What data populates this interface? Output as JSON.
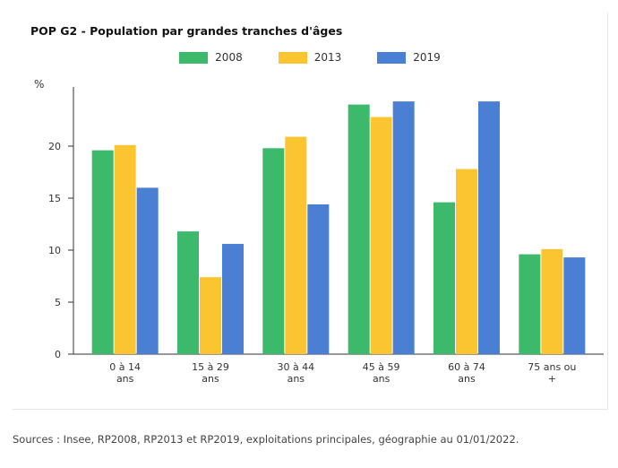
{
  "colors": {
    "s2008": "#3cb96b",
    "s2013": "#fbc532",
    "s2019": "#4a7fd4",
    "axis": "#333333"
  },
  "chart_data": {
    "type": "bar",
    "title": "POP G2 - Population par grandes tranches d'âges",
    "ylabel": "%",
    "ylim": [
      0,
      25
    ],
    "yticks": [
      0,
      5,
      10,
      15,
      20
    ],
    "legend_position": "top-center",
    "grid": false,
    "categories": [
      "0 à 14 ans",
      "15 à 29 ans",
      "30 à 44 ans",
      "45 à 59 ans",
      "60 à 74 ans",
      "75 ans ou +"
    ],
    "series": [
      {
        "name": "2008",
        "values": [
          19.6,
          11.8,
          19.8,
          24.0,
          14.6,
          9.6
        ]
      },
      {
        "name": "2013",
        "values": [
          20.1,
          7.4,
          20.9,
          22.8,
          17.8,
          10.1
        ]
      },
      {
        "name": "2019",
        "values": [
          16.0,
          10.6,
          14.4,
          24.3,
          24.3,
          9.3
        ]
      }
    ]
  },
  "footer": {
    "sources": "Sources : Insee, RP2008, RP2013 et RP2019, exploitations principales, géographie au 01/01/2022."
  }
}
